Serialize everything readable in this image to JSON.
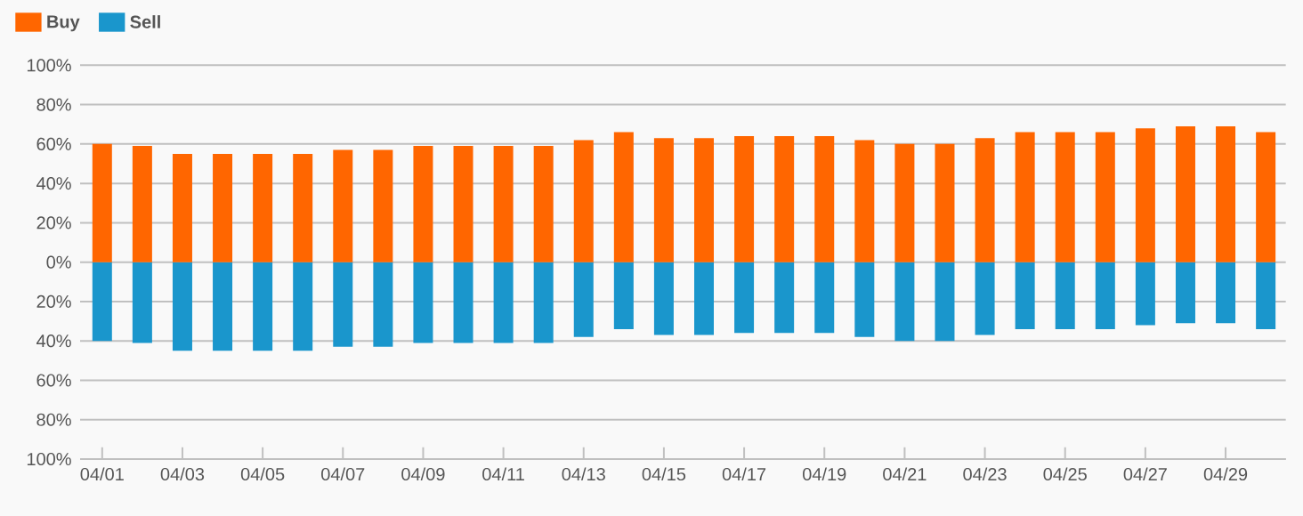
{
  "chart_data": {
    "type": "bar",
    "stacked": true,
    "grid": "y",
    "legend": "top left",
    "categories": [
      "04/01",
      null,
      "04/03",
      null,
      "04/05",
      null,
      "04/07",
      null,
      "04/09",
      null,
      "04/11",
      null,
      "04/13",
      null,
      "04/15",
      null,
      "04/17",
      null,
      "04/19",
      null,
      "04/21",
      null,
      "04/23",
      null,
      "04/25",
      null,
      "04/27",
      null,
      "04/29",
      null
    ],
    "series": [
      {
        "name": "Buy",
        "color": "#ff6600",
        "values": [
          60,
          59,
          55,
          55,
          55,
          55,
          57,
          57,
          59,
          59,
          59,
          59,
          62,
          66,
          63,
          63,
          64,
          64,
          64,
          62,
          60,
          60,
          63,
          66,
          66,
          66,
          68,
          69,
          69,
          66
        ]
      },
      {
        "name": "Sell",
        "color": "#1a96cc",
        "values": [
          -40,
          -41,
          -45,
          -45,
          -45,
          -45,
          -43,
          -43,
          -41,
          -41,
          -41,
          -41,
          -38,
          -34,
          -37,
          -37,
          -36,
          -36,
          -36,
          -38,
          -40,
          -40,
          -37,
          -34,
          -34,
          -34,
          -32,
          -31,
          -31,
          -34
        ]
      }
    ],
    "ylim": [
      -100,
      100
    ],
    "yticks": [
      {
        "value": -100,
        "label": "100%"
      },
      {
        "value": -80,
        "label": "80%"
      },
      {
        "value": -60,
        "label": "60%"
      },
      {
        "value": -40,
        "label": "40%"
      },
      {
        "value": -20,
        "label": "20%"
      },
      {
        "value": 0,
        "label": "0%"
      },
      {
        "value": 20,
        "label": "20%"
      },
      {
        "value": 40,
        "label": "40%"
      },
      {
        "value": 60,
        "label": "60%"
      },
      {
        "value": 80,
        "label": "80%"
      },
      {
        "value": 100,
        "label": "100%"
      }
    ]
  }
}
